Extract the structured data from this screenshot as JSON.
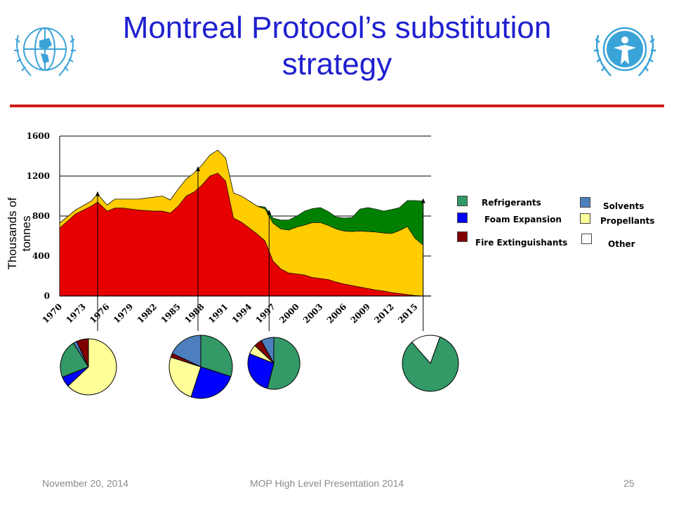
{
  "slide": {
    "title": "Montreal Protocol’s substitution strategy",
    "footer_date": "November 20, 2014",
    "footer_center": "MOP High Level Presentation 2014",
    "page_number": "25"
  },
  "logos": {
    "left": "wmo-emblem-icon",
    "right": "unep-emblem-icon",
    "color": "#3aa3d8"
  },
  "chart_data": {
    "type": "area",
    "stacked": true,
    "title": "",
    "xlabel": "",
    "ylabel": "Thousands of tonnes",
    "ylim": [
      0,
      1600
    ],
    "yticks": [
      0,
      400,
      800,
      1200,
      1600
    ],
    "xlim": [
      1970,
      2017
    ],
    "xticks": [
      "1970",
      "1973",
      "1976",
      "1979",
      "1982",
      "1985",
      "1988",
      "1991",
      "1994",
      "1997",
      "2000",
      "2003",
      "2006",
      "2009",
      "2012",
      "2015"
    ],
    "grid": "horizontal",
    "x": [
      1970,
      1972,
      1974,
      1974.8,
      1976,
      1977,
      1978,
      1980,
      1982,
      1983,
      1984,
      1985,
      1986,
      1987,
      1988,
      1989,
      1990,
      1991,
      1992,
      1993,
      1994,
      1995,
      1996,
      1997,
      1998,
      1999,
      2000,
      2001,
      2002,
      2003,
      2004,
      2005,
      2006,
      2007,
      2008,
      2009,
      2010,
      2011,
      2012,
      2013,
      2014,
      2015,
      2016
    ],
    "series": [
      {
        "name": "Fire Extinguishants",
        "color": "#e60000",
        "values": [
          680,
          820,
          900,
          940,
          850,
          880,
          880,
          860,
          850,
          850,
          830,
          900,
          1000,
          1040,
          1110,
          1200,
          1230,
          1150,
          780,
          740,
          680,
          620,
          550,
          350,
          270,
          230,
          220,
          210,
          185,
          175,
          165,
          140,
          120,
          105,
          90,
          75,
          60,
          50,
          35,
          25,
          15,
          5,
          0
        ]
      },
      {
        "name": "Propellants",
        "color": "#ffcc00",
        "values": [
          50,
          40,
          50,
          80,
          60,
          90,
          90,
          110,
          140,
          150,
          130,
          170,
          170,
          190,
          200,
          210,
          230,
          230,
          250,
          260,
          270,
          280,
          320,
          380,
          400,
          430,
          470,
          500,
          550,
          560,
          540,
          530,
          530,
          540,
          560,
          570,
          580,
          580,
          590,
          630,
          680,
          570,
          510
        ]
      },
      {
        "name": "Refrigerants",
        "color": "#008000",
        "values": [
          0,
          0,
          0,
          0,
          0,
          0,
          0,
          0,
          0,
          0,
          0,
          0,
          0,
          0,
          0,
          0,
          0,
          0,
          0,
          0,
          0,
          0,
          20,
          50,
          90,
          100,
          110,
          140,
          140,
          150,
          140,
          120,
          130,
          140,
          220,
          240,
          230,
          220,
          240,
          230,
          260,
          380,
          440
        ]
      }
    ],
    "legend": [
      "Refrigerants",
      "Solvents",
      "Foam Expansion",
      "Propellants",
      "Fire Extinguishants",
      "Other"
    ],
    "legend_colors": {
      "Refrigerants": "#339966",
      "Solvents": "#4d7fbf",
      "Foam Expansion": "#0000ff",
      "Propellants": "#ffff99",
      "Fire Extinguishants": "#800000",
      "Other": "#ffffff"
    },
    "legend_position": "right",
    "markers": [
      1974.8,
      1987.5,
      1996.5,
      2016
    ],
    "pies": [
      {
        "year": 1974.8,
        "slices": [
          {
            "name": "Propellants",
            "value": 63,
            "color": "#ffff99"
          },
          {
            "name": "Foam Expansion",
            "value": 6,
            "color": "#0000ff"
          },
          {
            "name": "Refrigerants",
            "value": 22,
            "color": "#339966"
          },
          {
            "name": "Solvents",
            "value": 2,
            "color": "#4d7fbf"
          },
          {
            "name": "Fire Extinguishants",
            "value": 7,
            "color": "#800000"
          }
        ]
      },
      {
        "year": 1987.5,
        "slices": [
          {
            "name": "Refrigerants",
            "value": 30,
            "color": "#339966"
          },
          {
            "name": "Foam Expansion",
            "value": 25,
            "color": "#0000ff"
          },
          {
            "name": "Propellants",
            "value": 25,
            "color": "#ffff99"
          },
          {
            "name": "Fire Extinguishants",
            "value": 2,
            "color": "#800000"
          },
          {
            "name": "Solvents",
            "value": 18,
            "color": "#4d7fbf"
          }
        ]
      },
      {
        "year": 1996.5,
        "slices": [
          {
            "name": "Refrigerants",
            "value": 54,
            "color": "#339966"
          },
          {
            "name": "Foam Expansion",
            "value": 27,
            "color": "#0000ff"
          },
          {
            "name": "Propellants",
            "value": 6,
            "color": "#ffff99"
          },
          {
            "name": "Fire Extinguishants",
            "value": 5,
            "color": "#800000"
          },
          {
            "name": "Solvents",
            "value": 8,
            "color": "#4d7fbf"
          }
        ]
      },
      {
        "year": 2016,
        "slices": [
          {
            "name": "Refrigerants",
            "value": 83,
            "color": "#339966"
          },
          {
            "name": "Other",
            "value": 17,
            "color": "#ffffff"
          }
        ]
      }
    ]
  }
}
